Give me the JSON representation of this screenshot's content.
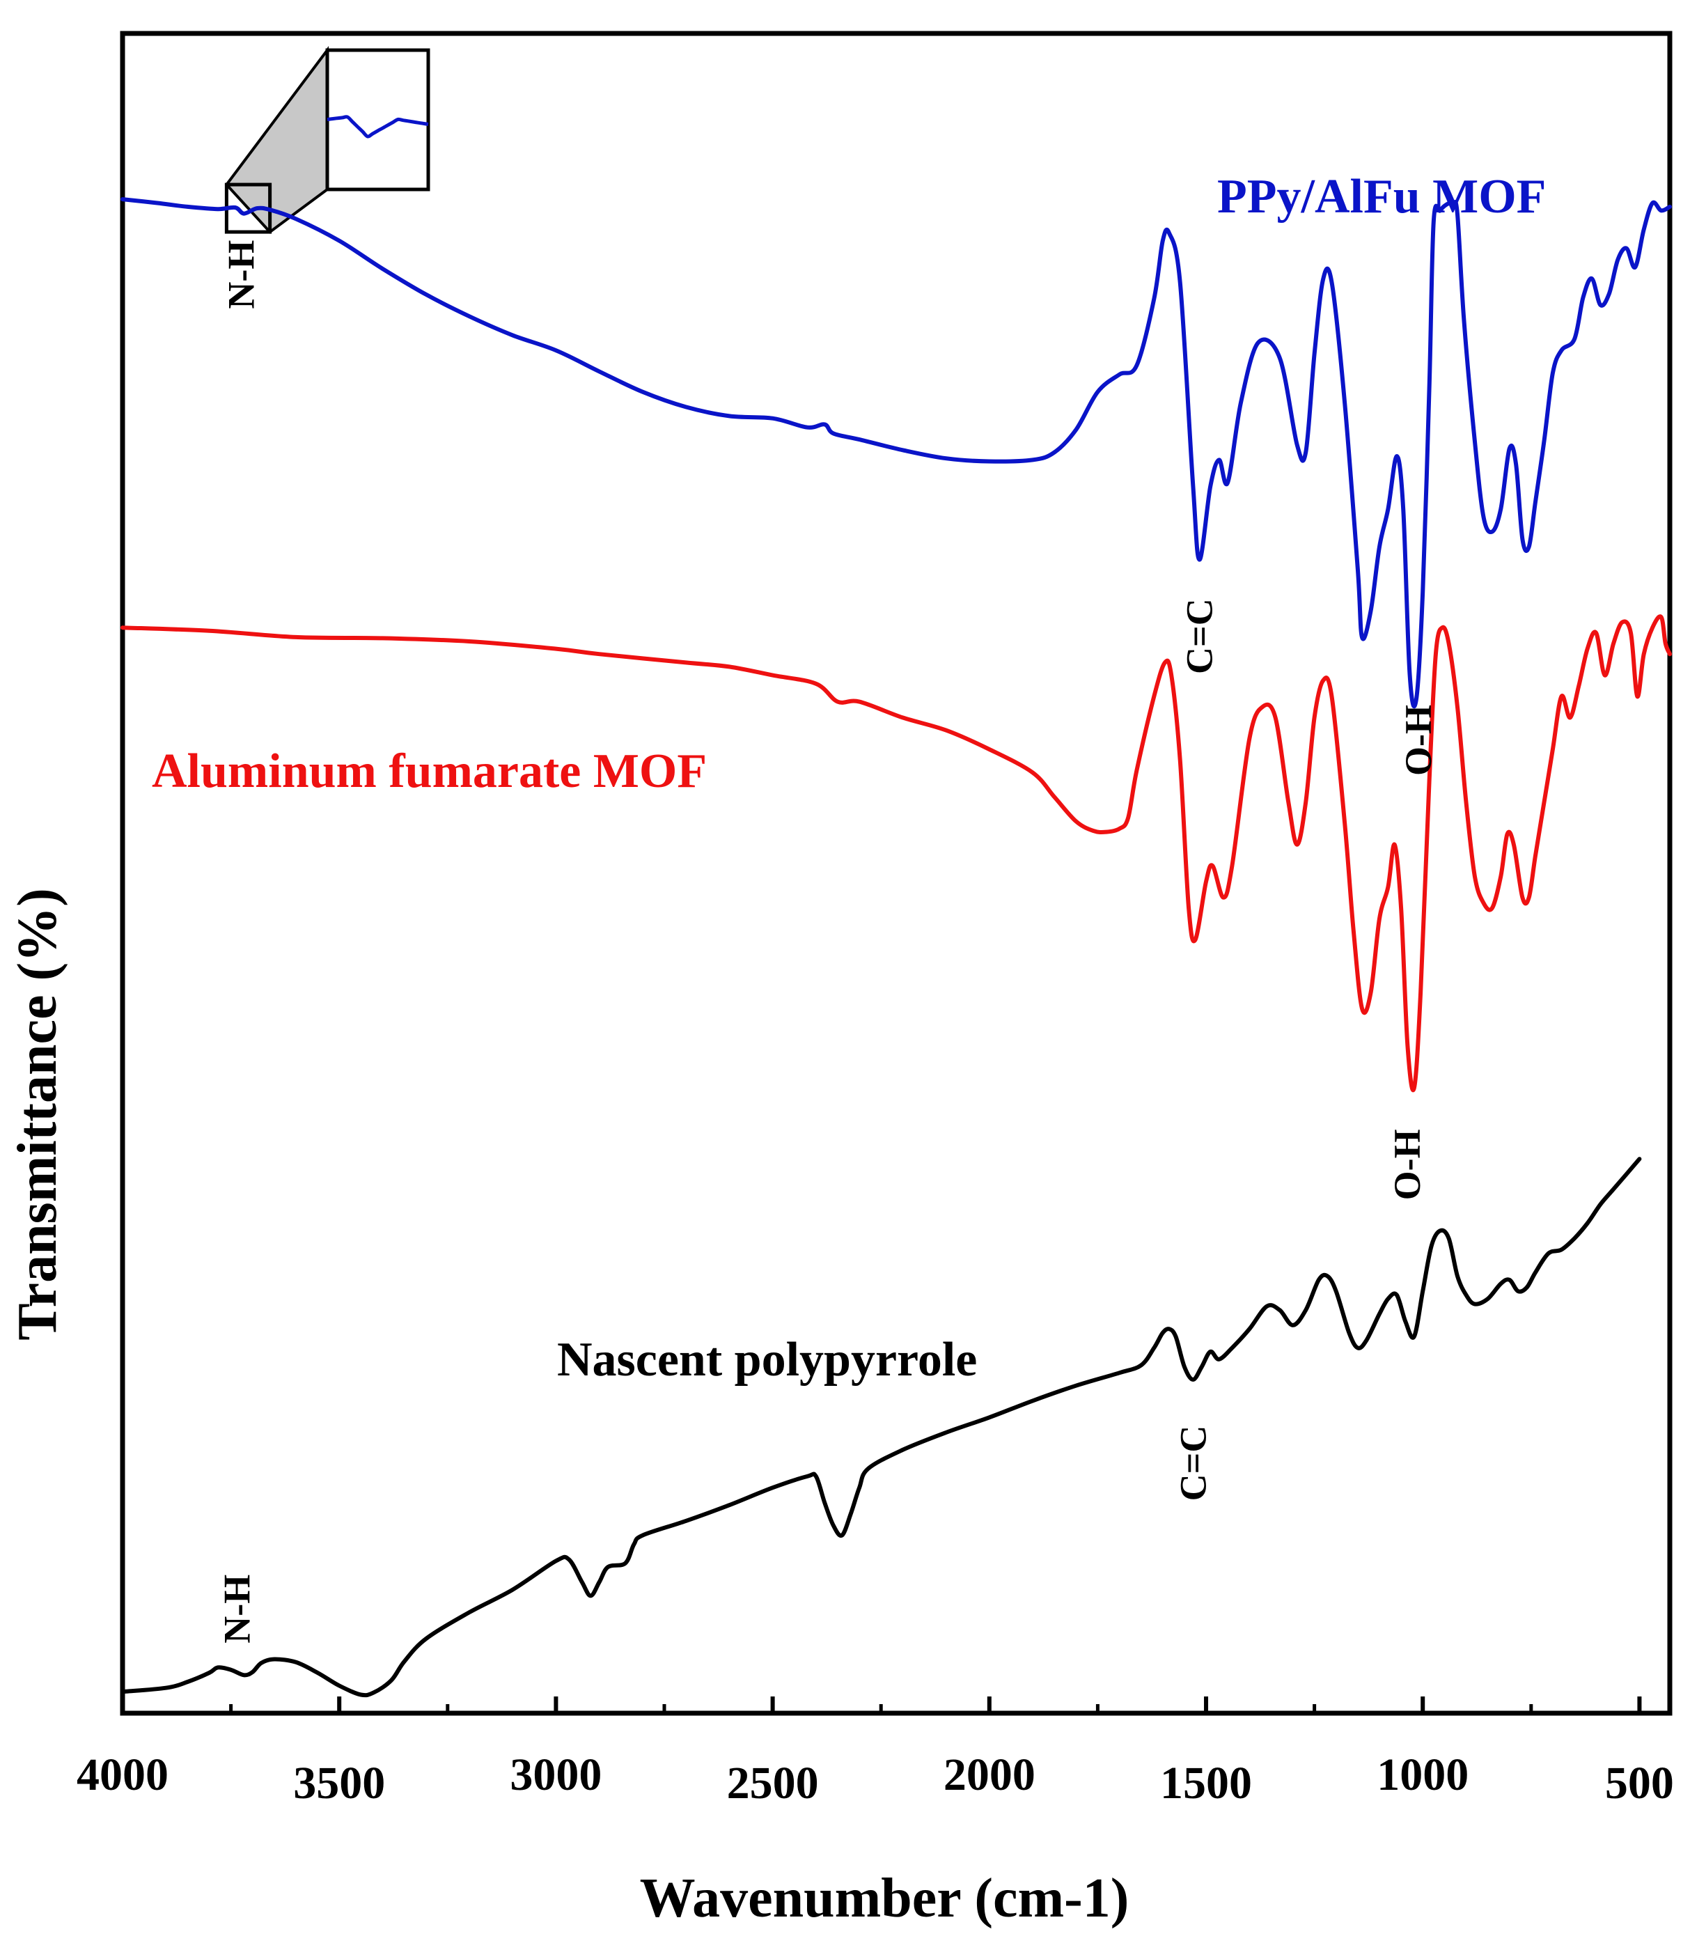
{
  "chart_data": {
    "type": "line",
    "title": "",
    "xlabel": "Wavenumber (cm-1)",
    "ylabel": "Transmittance (%)",
    "xlim": [
      4000,
      430
    ],
    "x_reversed": true,
    "x_ticks": [
      4000,
      3500,
      3000,
      2500,
      2000,
      1500,
      1000,
      500
    ],
    "y_ticks_shown": false,
    "grid": false,
    "series_labels": {
      "ppy_alfu": "PPy/AlFu MOF",
      "alfu": "Aluminum fumarate MOF",
      "ppy": "Nascent polypyrrole"
    },
    "series": [
      {
        "name": "PPy/AlFu MOF",
        "color": "#0a14c8",
        "points": [
          [
            4000,
            87
          ],
          [
            3920,
            86.5
          ],
          [
            3850,
            86
          ],
          [
            3780,
            85.7
          ],
          [
            3740,
            85.9
          ],
          [
            3720,
            85.1
          ],
          [
            3690,
            85.8
          ],
          [
            3660,
            85.6
          ],
          [
            3600,
            84.4
          ],
          [
            3500,
            81.5
          ],
          [
            3400,
            77.8
          ],
          [
            3300,
            74.4
          ],
          [
            3200,
            71.5
          ],
          [
            3100,
            69
          ],
          [
            3000,
            67
          ],
          [
            2900,
            64.2
          ],
          [
            2800,
            61.5
          ],
          [
            2700,
            59.5
          ],
          [
            2600,
            58.3
          ],
          [
            2500,
            58
          ],
          [
            2420,
            56.8
          ],
          [
            2380,
            57.2
          ],
          [
            2360,
            56
          ],
          [
            2300,
            55.2
          ],
          [
            2200,
            53.8
          ],
          [
            2100,
            52.7
          ],
          [
            2000,
            52.3
          ],
          [
            1900,
            52.5
          ],
          [
            1850,
            53.5
          ],
          [
            1800,
            56.5
          ],
          [
            1750,
            61.5
          ],
          [
            1700,
            63.8
          ],
          [
            1660,
            65
          ],
          [
            1620,
            73.8
          ],
          [
            1600,
            81.5
          ],
          [
            1585,
            82.5
          ],
          [
            1560,
            76
          ],
          [
            1530,
            49
          ],
          [
            1515,
            39.3
          ],
          [
            1490,
            49
          ],
          [
            1470,
            52.5
          ],
          [
            1450,
            49.5
          ],
          [
            1420,
            60
          ],
          [
            1380,
            68
          ],
          [
            1330,
            66
          ],
          [
            1290,
            54.5
          ],
          [
            1270,
            53.5
          ],
          [
            1250,
            66.5
          ],
          [
            1230,
            76.4
          ],
          [
            1210,
            76
          ],
          [
            1180,
            60
          ],
          [
            1150,
            38
          ],
          [
            1140,
            29
          ],
          [
            1120,
            32.5
          ],
          [
            1100,
            41
          ],
          [
            1080,
            46
          ],
          [
            1060,
            53
          ],
          [
            1045,
            46
          ],
          [
            1030,
            24
          ],
          [
            1015,
            20.8
          ],
          [
            1000,
            35
          ],
          [
            985,
            62
          ],
          [
            975,
            84
          ],
          [
            960,
            85.5
          ],
          [
            945,
            86.3
          ],
          [
            930,
            86.5
          ],
          [
            920,
            85
          ],
          [
            905,
            71
          ],
          [
            880,
            55
          ],
          [
            860,
            45
          ],
          [
            840,
            43
          ],
          [
            820,
            46
          ],
          [
            800,
            54
          ],
          [
            785,
            52
          ],
          [
            770,
            42
          ],
          [
            755,
            41
          ],
          [
            740,
            47
          ],
          [
            720,
            55
          ],
          [
            700,
            64
          ],
          [
            680,
            67
          ],
          [
            650,
            68.5
          ],
          [
            630,
            74
          ],
          [
            610,
            76.5
          ],
          [
            590,
            73
          ],
          [
            570,
            74.5
          ],
          [
            550,
            79
          ],
          [
            530,
            80.5
          ],
          [
            510,
            78
          ],
          [
            490,
            83
          ],
          [
            470,
            86.5
          ],
          [
            450,
            85.5
          ],
          [
            430,
            86
          ]
        ]
      },
      {
        "name": "Aluminum fumarate MOF",
        "color": "#ee1111",
        "points": [
          [
            4000,
            56.5
          ],
          [
            3800,
            56.2
          ],
          [
            3600,
            55.6
          ],
          [
            3400,
            55.5
          ],
          [
            3200,
            55.2
          ],
          [
            3000,
            54.5
          ],
          [
            2900,
            54
          ],
          [
            2700,
            53.2
          ],
          [
            2600,
            52.8
          ],
          [
            2500,
            52
          ],
          [
            2400,
            51.2
          ],
          [
            2350,
            49.5
          ],
          [
            2300,
            49.5
          ],
          [
            2200,
            48
          ],
          [
            2100,
            46.8
          ],
          [
            2000,
            45
          ],
          [
            1900,
            42.8
          ],
          [
            1850,
            40.5
          ],
          [
            1800,
            38.2
          ],
          [
            1760,
            37.3
          ],
          [
            1730,
            37.2
          ],
          [
            1700,
            37.5
          ],
          [
            1680,
            38.5
          ],
          [
            1660,
            43
          ],
          [
            1620,
            50
          ],
          [
            1595,
            53.2
          ],
          [
            1580,
            52
          ],
          [
            1560,
            44
          ],
          [
            1540,
            30
          ],
          [
            1525,
            27
          ],
          [
            1500,
            32.5
          ],
          [
            1485,
            34
          ],
          [
            1460,
            31
          ],
          [
            1440,
            34
          ],
          [
            1400,
            46
          ],
          [
            1370,
            49
          ],
          [
            1340,
            48
          ],
          [
            1310,
            40
          ],
          [
            1290,
            36
          ],
          [
            1270,
            40
          ],
          [
            1250,
            48
          ],
          [
            1230,
            51.5
          ],
          [
            1210,
            50
          ],
          [
            1180,
            38
          ],
          [
            1160,
            28
          ],
          [
            1140,
            20.5
          ],
          [
            1120,
            22
          ],
          [
            1100,
            29
          ],
          [
            1080,
            32
          ],
          [
            1065,
            36
          ],
          [
            1050,
            30
          ],
          [
            1035,
            17
          ],
          [
            1020,
            13
          ],
          [
            1005,
            22
          ],
          [
            985,
            42
          ],
          [
            970,
            54
          ],
          [
            955,
            56.5
          ],
          [
            940,
            55
          ],
          [
            920,
            49
          ],
          [
            900,
            40
          ],
          [
            880,
            33
          ],
          [
            860,
            30.5
          ],
          [
            840,
            30
          ],
          [
            820,
            33
          ],
          [
            805,
            37
          ],
          [
            790,
            36
          ],
          [
            770,
            31
          ],
          [
            755,
            31
          ],
          [
            740,
            35
          ],
          [
            720,
            40
          ],
          [
            700,
            45
          ],
          [
            680,
            50
          ],
          [
            660,
            48
          ],
          [
            640,
            51
          ],
          [
            620,
            54.5
          ],
          [
            600,
            56
          ],
          [
            580,
            52
          ],
          [
            560,
            55
          ],
          [
            540,
            57
          ],
          [
            520,
            56
          ],
          [
            505,
            50
          ],
          [
            490,
            54
          ],
          [
            470,
            56.5
          ],
          [
            450,
            57.5
          ],
          [
            440,
            55
          ],
          [
            430,
            54
          ]
        ]
      },
      {
        "name": "Nascent polypyrrole",
        "color": "#000000",
        "points": [
          [
            4000,
            1
          ],
          [
            3900,
            1.5
          ],
          [
            3850,
            2.3
          ],
          [
            3800,
            3.5
          ],
          [
            3780,
            4.2
          ],
          [
            3750,
            3.9
          ],
          [
            3720,
            3.2
          ],
          [
            3700,
            3.6
          ],
          [
            3680,
            4.8
          ],
          [
            3650,
            5.3
          ],
          [
            3600,
            4.9
          ],
          [
            3550,
            3.5
          ],
          [
            3500,
            1.8
          ],
          [
            3450,
            0.6
          ],
          [
            3420,
            0.9
          ],
          [
            3380,
            2.5
          ],
          [
            3350,
            5
          ],
          [
            3300,
            8
          ],
          [
            3200,
            11.5
          ],
          [
            3100,
            14.5
          ],
          [
            3000,
            18.3
          ],
          [
            2970,
            18.5
          ],
          [
            2940,
            15.5
          ],
          [
            2920,
            13.7
          ],
          [
            2900,
            15.5
          ],
          [
            2880,
            17.5
          ],
          [
            2840,
            18
          ],
          [
            2820,
            20.5
          ],
          [
            2800,
            21.7
          ],
          [
            2700,
            23.6
          ],
          [
            2600,
            25.7
          ],
          [
            2500,
            28
          ],
          [
            2420,
            29.5
          ],
          [
            2400,
            29.5
          ],
          [
            2380,
            26
          ],
          [
            2360,
            23
          ],
          [
            2340,
            21.7
          ],
          [
            2320,
            24.5
          ],
          [
            2300,
            28
          ],
          [
            2280,
            30.5
          ],
          [
            2200,
            33
          ],
          [
            2100,
            35.3
          ],
          [
            2000,
            37.3
          ],
          [
            1900,
            39.5
          ],
          [
            1800,
            41.5
          ],
          [
            1700,
            43.2
          ],
          [
            1650,
            44.2
          ],
          [
            1620,
            46.5
          ],
          [
            1600,
            48.5
          ],
          [
            1585,
            49
          ],
          [
            1570,
            48
          ],
          [
            1550,
            44
          ],
          [
            1530,
            42.3
          ],
          [
            1510,
            44
          ],
          [
            1490,
            46
          ],
          [
            1470,
            45
          ],
          [
            1440,
            46.5
          ],
          [
            1400,
            49
          ],
          [
            1360,
            52
          ],
          [
            1330,
            51.5
          ],
          [
            1300,
            49.5
          ],
          [
            1270,
            51.5
          ],
          [
            1240,
            55.5
          ],
          [
            1220,
            56
          ],
          [
            1200,
            54
          ],
          [
            1170,
            48.5
          ],
          [
            1150,
            46.5
          ],
          [
            1130,
            47.5
          ],
          [
            1100,
            51
          ],
          [
            1080,
            53
          ],
          [
            1060,
            53.5
          ],
          [
            1040,
            50
          ],
          [
            1020,
            48
          ],
          [
            1000,
            54
          ],
          [
            980,
            60
          ],
          [
            960,
            62
          ],
          [
            940,
            61
          ],
          [
            920,
            56
          ],
          [
            900,
            53.5
          ],
          [
            880,
            52.3
          ],
          [
            850,
            53
          ],
          [
            820,
            55
          ],
          [
            800,
            55.5
          ],
          [
            780,
            54
          ],
          [
            760,
            54.5
          ],
          [
            740,
            56.5
          ],
          [
            710,
            59
          ],
          [
            680,
            59.5
          ],
          [
            650,
            61
          ],
          [
            620,
            63
          ],
          [
            590,
            65.5
          ],
          [
            560,
            67.5
          ],
          [
            530,
            69.5
          ],
          [
            500,
            71.5
          ]
        ]
      }
    ],
    "annotations": [
      {
        "text": "N-H",
        "series": "PPy/AlFu MOF",
        "x": 3710
      },
      {
        "text": "C=C",
        "series": "PPy/AlFu MOF",
        "x": 1515
      },
      {
        "text": "O-H",
        "series": "PPy/AlFu MOF",
        "x": 1010
      },
      {
        "text": "O-H",
        "series": "Aluminum fumarate MOF",
        "x": 1020
      },
      {
        "text": "C=C",
        "series": "Nascent polypyrrole",
        "x": 1530
      },
      {
        "text": "N-H",
        "series": "Nascent polypyrrole",
        "x": 3720
      }
    ],
    "inset_zoom": {
      "series": "PPy/AlFu MOF",
      "x_range": [
        3760,
        3660
      ]
    }
  }
}
